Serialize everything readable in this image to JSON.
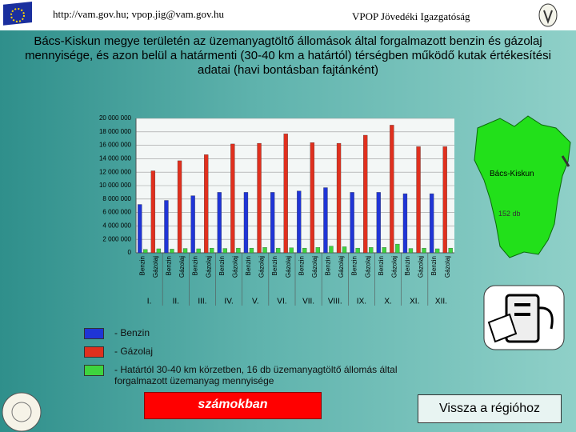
{
  "header": {
    "contact": "http://vam.gov.hu; vpop.jig@vam.gov.hu",
    "org": "VPOP Jövedéki Igazgatóság"
  },
  "chart_data": {
    "type": "bar",
    "title": "Bács-Kiskun megye területén az üzemanyagtöltő állomások által forgalmazott benzin és gázolaj mennyisége, és azon belül a határmenti (30-40 km a határtól) térségben működő kutak értékesítési adatai (havi bontásban fajtánként)",
    "categories": [
      "Benzin",
      "Gázolaj",
      "Benzin",
      "Gázolaj",
      "Benzin",
      "Gázolaj",
      "Benzin",
      "Gázolaj",
      "Benzin",
      "Gázolaj",
      "Benzin",
      "Gázolaj",
      "Benzin",
      "Gázolaj",
      "Benzin",
      "Gázolaj",
      "Benzin",
      "Gázolaj",
      "Benzin",
      "Gázolaj",
      "Benzin",
      "Gázolaj",
      "Benzin",
      "Gázolaj"
    ],
    "groups": [
      "I.",
      "II.",
      "III.",
      "IV.",
      "V.",
      "VI.",
      "VII.",
      "VIII.",
      "IX.",
      "X.",
      "XI.",
      "XII."
    ],
    "series": [
      {
        "name": "- Benzin",
        "color": "#1f35d6",
        "values": [
          7200000,
          null,
          7800000,
          null,
          8500000,
          null,
          9000000,
          null,
          9000000,
          null,
          9000000,
          null,
          9200000,
          null,
          9700000,
          null,
          9000000,
          null,
          9000000,
          null,
          8800000,
          null,
          8800000,
          null
        ]
      },
      {
        "name": "- Gázolaj",
        "color": "#e0301e",
        "values": [
          null,
          12200000,
          null,
          13700000,
          null,
          14600000,
          null,
          16200000,
          null,
          16300000,
          null,
          17700000,
          null,
          16400000,
          null,
          16300000,
          null,
          17500000,
          null,
          19000000,
          null,
          15800000,
          null,
          15800000
        ]
      },
      {
        "name": "- Határtól 30-40 km körzetben, 16 db üzemanyagtöltő állomás által forgalmazott üzemanyag mennyisége",
        "color": "#3ed43e",
        "values": [
          500000,
          600000,
          550000,
          650000,
          600000,
          700000,
          650000,
          700000,
          700000,
          800000,
          700000,
          750000,
          700000,
          800000,
          1000000,
          900000,
          700000,
          800000,
          800000,
          1300000,
          650000,
          700000,
          600000,
          700000
        ]
      }
    ],
    "ylim": [
      0,
      20000000
    ],
    "yticks": [
      0,
      {
        "value": 2000000,
        "label": "2 000 000"
      },
      {
        "value": 4000000,
        "label": "4 000 000"
      },
      {
        "value": 6000000,
        "label": "6 000 000"
      },
      {
        "value": 8000000,
        "label": "8 000 000"
      },
      {
        "value": 10000000,
        "label": "10 000 000"
      },
      {
        "value": 12000000,
        "label": "12 000 000"
      },
      {
        "value": 14000000,
        "label": "14 000 000"
      },
      {
        "value": 16000000,
        "label": "16 000 000"
      },
      {
        "value": 18000000,
        "label": "18 000 000"
      },
      {
        "value": 20000000,
        "label": "20 000 000"
      }
    ],
    "grid": true
  },
  "map": {
    "label": "Bács-Kiskun",
    "count": "152 db"
  },
  "buttons": {
    "numbers": "számokban",
    "back": "Vissza a régióhoz"
  }
}
